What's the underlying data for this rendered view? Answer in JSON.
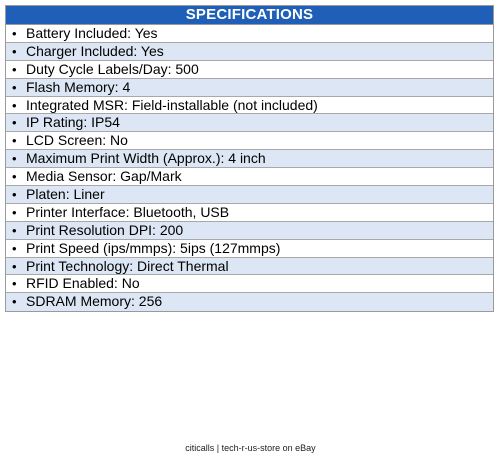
{
  "header": {
    "title": "SPECIFICATIONS"
  },
  "specs": [
    "Battery Included: Yes",
    "Charger Included: Yes",
    "Duty Cycle Labels/Day: 500",
    "Flash Memory: 4",
    "Integrated MSR: Field-installable (not included)",
    "IP Rating: IP54",
    "LCD Screen: No",
    "Maximum Print Width (Approx.): 4 inch",
    "Media Sensor: Gap/Mark",
    "Platen: Liner",
    "Printer Interface: Bluetooth, USB",
    "Print Resolution DPI: 200",
    "Print Speed (ips/mmps): 5ips (127mmps)",
    "Print Technology: Direct Thermal",
    "RFID Enabled: No",
    "SDRAM Memory: 256"
  ],
  "bullet": "•",
  "footer": {
    "text": "citicalls | tech-r-us-store on eBay"
  },
  "colors": {
    "header_bg": "#1f5fb7",
    "row_alt_bg": "#dce6f4"
  }
}
